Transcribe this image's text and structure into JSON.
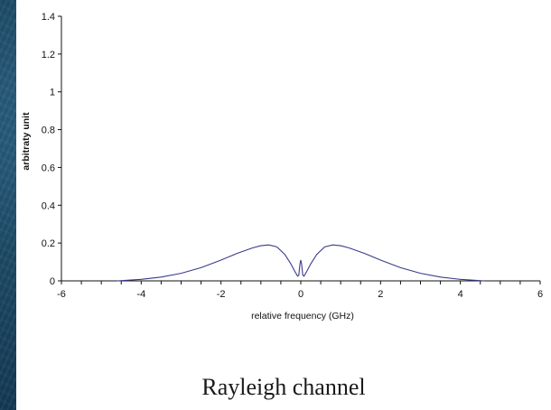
{
  "chart_data": {
    "type": "line",
    "xlabel": "relative frequency (GHz)",
    "ylabel": "arbitraty unit",
    "xlim": [
      -6,
      6
    ],
    "ylim": [
      0,
      1.4
    ],
    "x_ticks": [
      -6,
      -4,
      -2,
      0,
      2,
      4,
      6
    ],
    "y_ticks": [
      0,
      0.2,
      0.4,
      0.6,
      0.8,
      1,
      1.2,
      1.4
    ],
    "grid": false,
    "series": [
      {
        "color": "#3a3a8c",
        "x": [
          -4.6,
          -4.0,
          -3.5,
          -3.0,
          -2.5,
          -2.0,
          -1.6,
          -1.2,
          -1.0,
          -0.8,
          -0.6,
          -0.4,
          -0.25,
          -0.15,
          -0.08,
          -0.05,
          -0.02,
          0.0,
          0.02,
          0.05,
          0.08,
          0.15,
          0.25,
          0.4,
          0.6,
          0.8,
          1.0,
          1.2,
          1.6,
          2.0,
          2.5,
          3.0,
          3.5,
          4.0,
          4.6
        ],
        "y": [
          0.0,
          0.008,
          0.02,
          0.04,
          0.07,
          0.11,
          0.145,
          0.175,
          0.186,
          0.19,
          0.18,
          0.14,
          0.09,
          0.05,
          0.025,
          0.03,
          0.09,
          0.11,
          0.09,
          0.03,
          0.025,
          0.05,
          0.09,
          0.14,
          0.18,
          0.19,
          0.186,
          0.175,
          0.145,
          0.11,
          0.07,
          0.04,
          0.02,
          0.008,
          0.0
        ]
      }
    ]
  },
  "caption": "Rayleigh channel"
}
